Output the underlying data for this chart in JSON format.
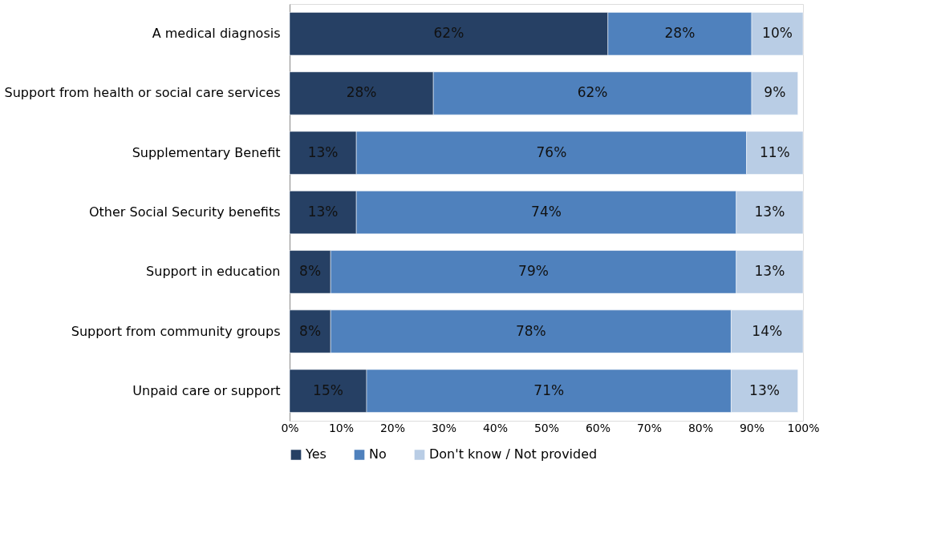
{
  "chart_data": {
    "type": "bar",
    "orientation": "horizontal",
    "stacked": true,
    "categories": [
      "A medical diagnosis",
      "Support from health or social care services",
      "Supplementary Benefit",
      "Other Social Security benefits",
      "Support in education",
      "Support from community groups",
      "Unpaid care or support"
    ],
    "series": [
      {
        "name": "Yes",
        "color": "#264064",
        "values": [
          62,
          28,
          13,
          13,
          8,
          8,
          15
        ],
        "value_labels": [
          "62%",
          "28%",
          "13%",
          "13%",
          "8%",
          "8%",
          "15%"
        ]
      },
      {
        "name": "No",
        "color": "#4f81bd",
        "values": [
          28,
          62,
          76,
          74,
          79,
          78,
          71
        ],
        "value_labels": [
          "28%",
          "62%",
          "76%",
          "74%",
          "79%",
          "78%",
          "71%"
        ]
      },
      {
        "name": "Don't know / Not provided",
        "color": "#b9cde5",
        "values": [
          10,
          9,
          11,
          13,
          13,
          14,
          13
        ],
        "value_labels": [
          "10%",
          "9%",
          "11%",
          "13%",
          "13%",
          "14%",
          "13%"
        ]
      }
    ],
    "xlim": [
      0,
      100
    ],
    "xticks": [
      {
        "value": 0,
        "label": "0%"
      },
      {
        "value": 10,
        "label": "10%"
      },
      {
        "value": 20,
        "label": "20%"
      },
      {
        "value": 30,
        "label": "30%"
      },
      {
        "value": 40,
        "label": "40%"
      },
      {
        "value": 50,
        "label": "50%"
      },
      {
        "value": 60,
        "label": "60%"
      },
      {
        "value": 70,
        "label": "70%"
      },
      {
        "value": 80,
        "label": "80%"
      },
      {
        "value": 90,
        "label": "90%"
      },
      {
        "value": 100,
        "label": "100%"
      }
    ],
    "grid": false,
    "legend": "bottom"
  }
}
